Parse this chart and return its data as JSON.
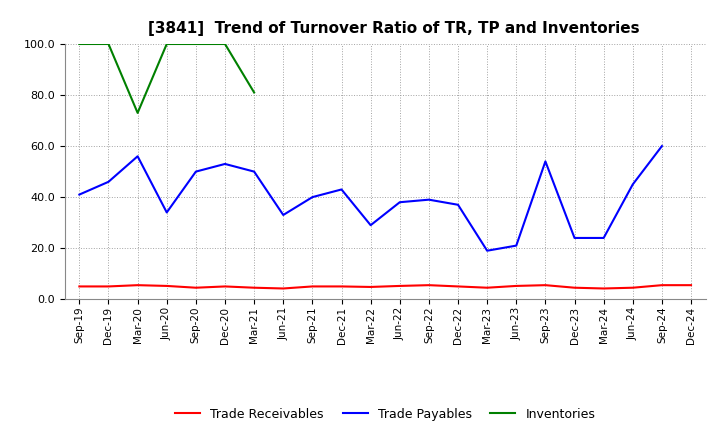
{
  "title": "[3841]  Trend of Turnover Ratio of TR, TP and Inventories",
  "x_labels": [
    "Sep-19",
    "Dec-19",
    "Mar-20",
    "Jun-20",
    "Sep-20",
    "Dec-20",
    "Mar-21",
    "Jun-21",
    "Sep-21",
    "Dec-21",
    "Mar-22",
    "Jun-22",
    "Sep-22",
    "Dec-22",
    "Mar-23",
    "Jun-23",
    "Sep-23",
    "Dec-23",
    "Mar-24",
    "Jun-24",
    "Sep-24",
    "Dec-24"
  ],
  "trade_receivables": [
    5.0,
    5.0,
    5.5,
    5.2,
    4.5,
    5.0,
    4.5,
    4.2,
    5.0,
    5.0,
    4.8,
    5.2,
    5.5,
    5.0,
    4.5,
    5.2,
    5.5,
    4.5,
    4.2,
    4.5,
    5.5,
    5.5
  ],
  "trade_payables": [
    41.0,
    46.0,
    56.0,
    34.0,
    50.0,
    53.0,
    50.0,
    33.0,
    40.0,
    43.0,
    29.0,
    38.0,
    39.0,
    37.0,
    19.0,
    21.0,
    54.0,
    24.0,
    24.0,
    45.0,
    60.0,
    null
  ],
  "inventories": [
    100.0,
    100.0,
    73.0,
    100.0,
    100.0,
    100.0,
    81.0,
    null,
    null,
    null,
    null,
    null,
    null,
    null,
    null,
    null,
    null,
    null,
    null,
    null,
    null,
    null
  ],
  "tr_color": "#ff0000",
  "tp_color": "#0000ff",
  "inv_color": "#008000",
  "ylim": [
    0.0,
    100.0
  ],
  "yticks": [
    0.0,
    20.0,
    40.0,
    60.0,
    80.0,
    100.0
  ],
  "background_color": "#ffffff",
  "grid_color": "#999999",
  "title_fontsize": 11,
  "legend_labels": [
    "Trade Receivables",
    "Trade Payables",
    "Inventories"
  ],
  "linewidth": 1.5
}
